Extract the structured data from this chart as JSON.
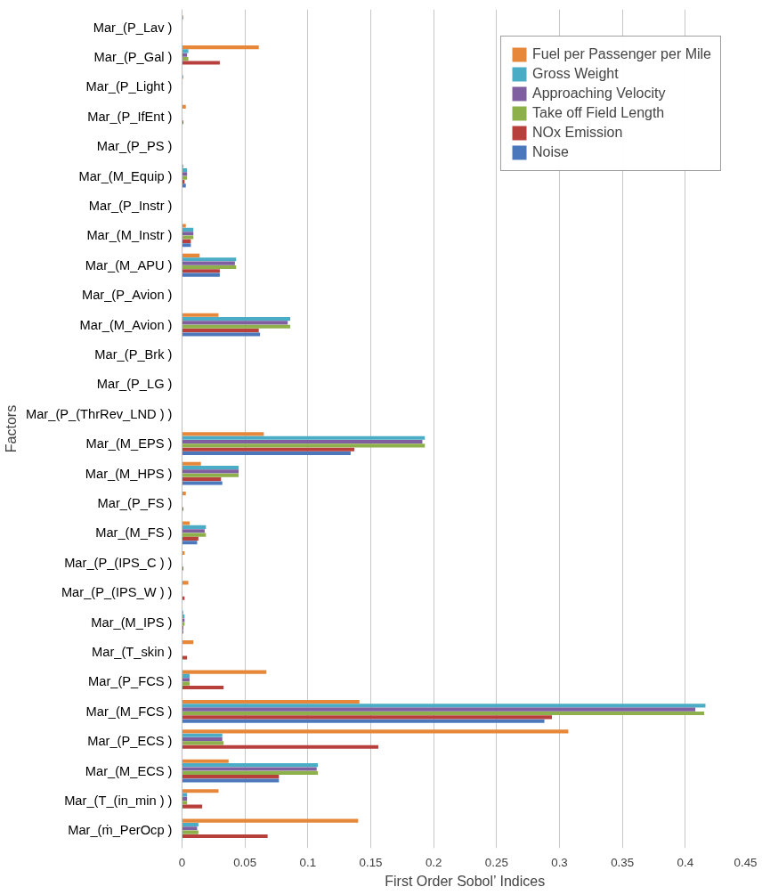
{
  "chart_data": {
    "type": "bar",
    "orientation": "horizontal",
    "xlabel": "First Order Sobol’ Indices",
    "ylabel": "Factors",
    "categories": [
      "Mar_(P_Lav )",
      "Mar_(P_Gal )",
      "Mar_(P_Light )",
      "Mar_(P_IfEnt )",
      "Mar_(P_PS )",
      "Mar_(M_Equip )",
      "Mar_(P_Instr )",
      "Mar_(M_Instr )",
      "Mar_(M_APU )",
      "Mar_(P_Avion )",
      "Mar_(M_Avion )",
      "Mar_(P_Brk )",
      "Mar_(P_LG )",
      "Mar_(P_(ThrRev_LND ) )",
      "Mar_(M_EPS )",
      "Mar_(M_HPS )",
      "Mar_(P_FS )",
      "Mar_(M_FS )",
      "Mar_(P_(IPS_C ) )",
      "Mar_(P_(IPS_W ) )",
      "Mar_(M_IPS )",
      "Mar_(T_skin )",
      "Mar_(P_FCS )",
      "Mar_(M_FCS )",
      "Mar_(P_ECS )",
      "Mar_(M_ECS )",
      "Mar_(T_(in_min ) )",
      "Mar_(ṁ_PerOcp )"
    ],
    "series": [
      {
        "name": "Fuel per Passenger per Mile",
        "color": "#e6873a",
        "values": [
          0.001,
          0.061,
          0.001,
          0.003,
          0,
          0.001,
          0,
          0.003,
          0.014,
          0,
          0.029,
          0,
          0,
          0,
          0.065,
          0.015,
          0.003,
          0.006,
          0.002,
          0.005,
          0.001,
          0.009,
          0.067,
          0.141,
          0.307,
          0.037,
          0.029,
          0.14
        ]
      },
      {
        "name": "Gross Weight",
        "color": "#4bacc6",
        "values": [
          0,
          0.005,
          0,
          0,
          0,
          0.004,
          0,
          0.009,
          0.043,
          0,
          0.086,
          0,
          0,
          0,
          0.193,
          0.045,
          0,
          0.019,
          0,
          0,
          0.002,
          0,
          0.006,
          0.416,
          0.032,
          0.108,
          0.004,
          0.013
        ]
      },
      {
        "name": "Approaching Velocity",
        "color": "#7f5f9f",
        "values": [
          0,
          0.004,
          0,
          0,
          0,
          0.004,
          0,
          0.009,
          0.042,
          0,
          0.084,
          0,
          0,
          0,
          0.191,
          0.045,
          0,
          0.018,
          0,
          0,
          0.002,
          0,
          0.006,
          0.408,
          0.032,
          0.107,
          0.004,
          0.012
        ]
      },
      {
        "name": "Take off Field Length",
        "color": "#8db04a",
        "values": [
          0,
          0.005,
          0,
          0,
          0,
          0.004,
          0,
          0.009,
          0.043,
          0,
          0.086,
          0,
          0,
          0,
          0.193,
          0.045,
          0,
          0.019,
          0,
          0,
          0.002,
          0,
          0.006,
          0.415,
          0.033,
          0.108,
          0.004,
          0.013
        ]
      },
      {
        "name": "NOx Emission",
        "color": "#b8403c",
        "values": [
          0,
          0.03,
          0,
          0.001,
          0,
          0.002,
          0,
          0.007,
          0.03,
          0,
          0.061,
          0,
          0,
          0,
          0.137,
          0.031,
          0.001,
          0.013,
          0.001,
          0.002,
          0.001,
          0.004,
          0.033,
          0.294,
          0.156,
          0.077,
          0.016,
          0.068
        ]
      },
      {
        "name": "Noise",
        "color": "#4a78bb",
        "values": [
          0,
          0,
          0,
          0,
          0,
          0.003,
          0,
          0.007,
          0.03,
          0,
          0.062,
          0,
          0,
          0,
          0.134,
          0.032,
          0,
          0.012,
          0,
          0,
          0.001,
          0,
          0,
          0.288,
          0,
          0.077,
          0,
          0
        ]
      }
    ],
    "xlim": [
      0,
      0.45
    ],
    "xticks": [
      0,
      0.05,
      0.1,
      0.15,
      0.2,
      0.25,
      0.3,
      0.35,
      0.4,
      0.45
    ],
    "grid": "x",
    "legend": "top right"
  }
}
